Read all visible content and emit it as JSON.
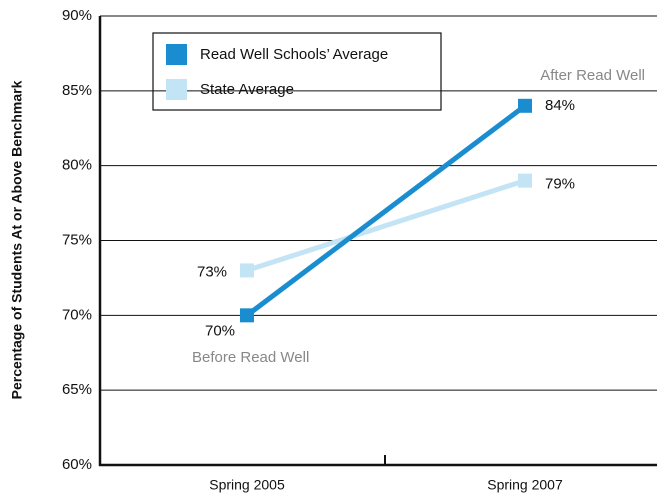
{
  "chart_data": {
    "type": "line",
    "y_axis_label": "Percentage of Students At or Above Benchmark",
    "categories": [
      "Spring 2005",
      "Spring 2007"
    ],
    "series": [
      {
        "name": "Read Well Schools’ Average",
        "color": "#1a8dd0",
        "values": [
          70,
          84
        ],
        "value_labels": [
          "70%",
          "84%"
        ]
      },
      {
        "name": "State Average",
        "color": "#c3e4f4",
        "values": [
          73,
          79
        ],
        "value_labels": [
          "73%",
          "79%"
        ]
      }
    ],
    "ylim": [
      60,
      90
    ],
    "yticks": [
      {
        "value": 60,
        "label": "60%"
      },
      {
        "value": 65,
        "label": "65%"
      },
      {
        "value": 70,
        "label": "70%"
      },
      {
        "value": 75,
        "label": "75%"
      },
      {
        "value": 80,
        "label": "80%"
      },
      {
        "value": 85,
        "label": "85%"
      },
      {
        "value": 90,
        "label": "90%"
      }
    ],
    "grid": true,
    "annotations": [
      "After Read Well",
      "Before Read Well"
    ]
  }
}
